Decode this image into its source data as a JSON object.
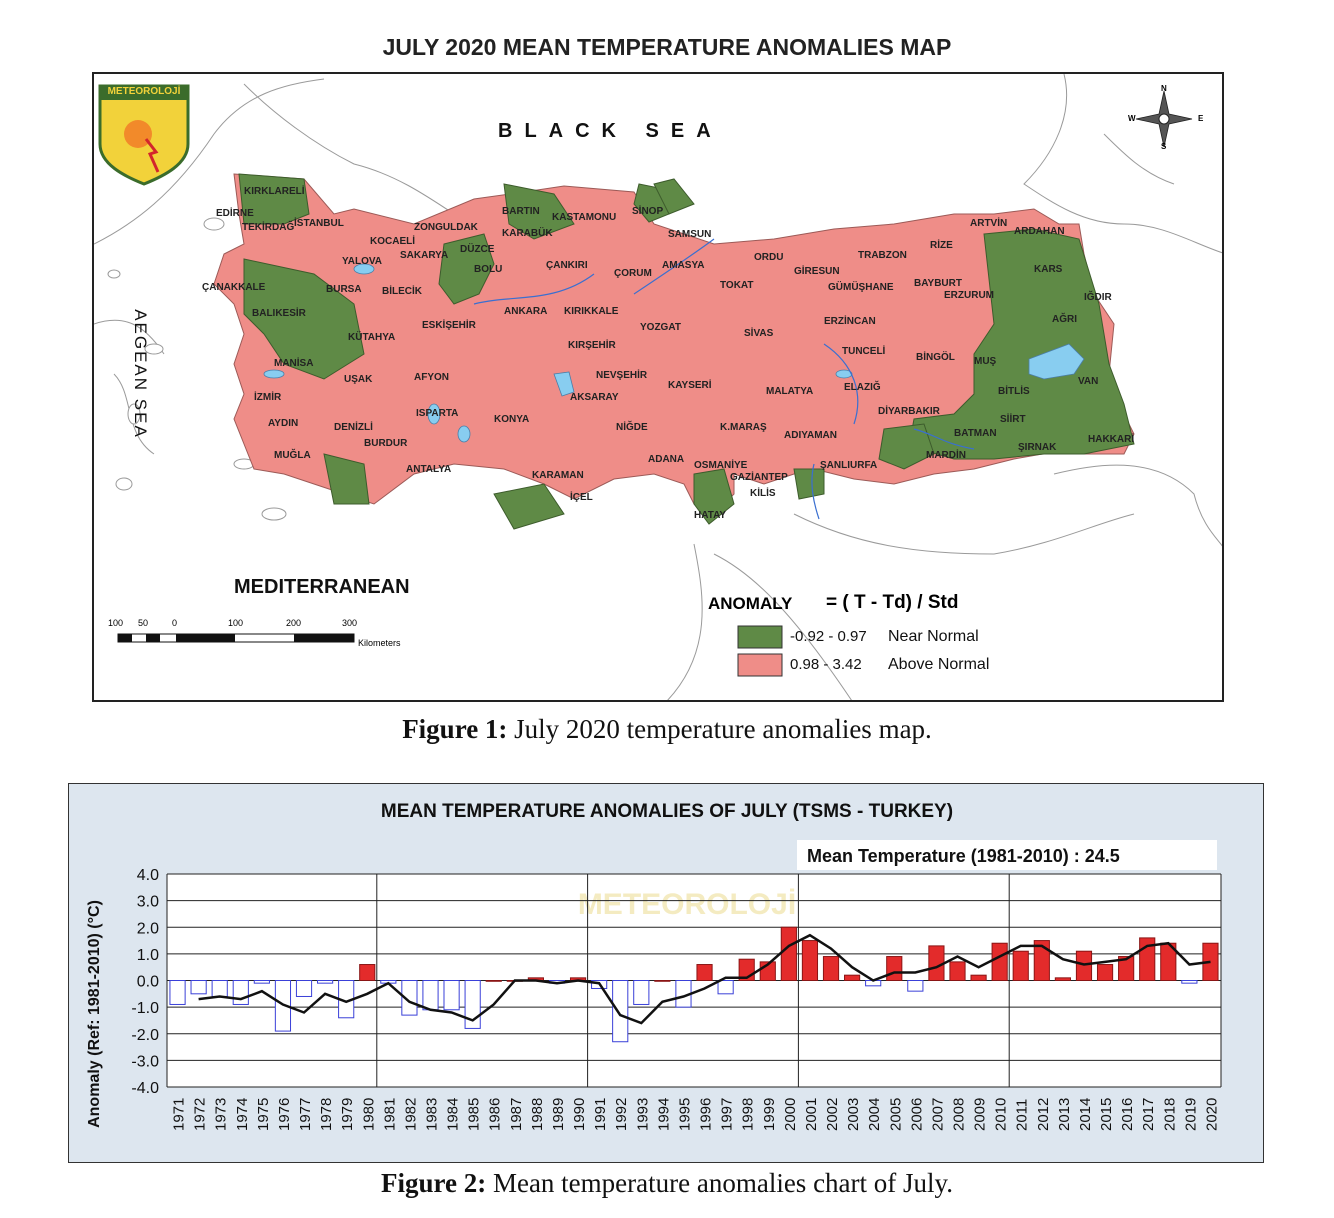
{
  "figure1": {
    "map_title": "JULY 2020 MEAN TEMPERATURE ANOMALIES MAP",
    "logo_text": "METEOROLOJİ",
    "seas": {
      "black_sea": "BLACK SEA",
      "aegean_sea": "AEGEAN SEA",
      "mediterranean": "MEDITERRANEAN"
    },
    "compass": {
      "n": "N",
      "e": "E",
      "s": "S",
      "w": "W"
    },
    "scale": {
      "ticks": [
        "100",
        "50",
        "0",
        "100",
        "200",
        "300"
      ],
      "unit": "Kilometers"
    },
    "legend": {
      "title": "ANOMALY",
      "formula": "= ( T - Td) / Std",
      "items": [
        {
          "range": "-0.92 - 0.97",
          "label": "Near Normal",
          "color": "#5f8a46"
        },
        {
          "range": "0.98 - 3.42",
          "label": "Above Normal",
          "color": "#ef8d88"
        }
      ]
    },
    "cities": [
      "KIRKLARELİ",
      "EDİRNE",
      "TEKİRDAĞ",
      "İSTANBUL",
      "ZONGULDAK",
      "BARTIN",
      "KASTAMONU",
      "SİNOP",
      "KOCAELİ",
      "DÜZCE",
      "KARABÜK",
      "SAMSUN",
      "ARTVİN",
      "ARDAHAN",
      "YALOVA",
      "SAKARYA",
      "BOLU",
      "ÇANKIRI",
      "AMASYA",
      "ORDU",
      "TRABZON",
      "RİZE",
      "ÇANAKKALE",
      "BURSA",
      "BİLECİK",
      "ÇORUM",
      "GİRESUN",
      "KARS",
      "TOKAT",
      "GÜMÜŞHANE",
      "BAYBURT",
      "IĞDIR",
      "ERZURUM",
      "BALIKESİR",
      "ESKİŞEHİR",
      "ANKARA",
      "KIRIKKALE",
      "YOZGAT",
      "ERZİNCAN",
      "AĞRI",
      "KÜTAHYA",
      "SİVAS",
      "KIRŞEHİR",
      "TUNCELİ",
      "BİNGÖL",
      "MUŞ",
      "MANİSA",
      "UŞAK",
      "AFYON",
      "NEVŞEHİR",
      "KAYSERİ",
      "VAN",
      "ELAZIĞ",
      "MALATYA",
      "BİTLİS",
      "İZMİR",
      "AKSARAY",
      "DİYARBAKIR",
      "SİİRT",
      "AYDIN",
      "DENİZLİ",
      "ISPARTA",
      "KONYA",
      "NİĞDE",
      "K.MARAŞ",
      "ADIYAMAN",
      "BATMAN",
      "HAKKARİ",
      "BURDUR",
      "ŞIRNAK",
      "MUĞLA",
      "ADANA",
      "OSMANİYE",
      "MARDİN",
      "ANTALYA",
      "KARAMAN",
      "GAZİANTEP",
      "ŞANLIURFA",
      "İÇEL",
      "KİLİS",
      "HATAY"
    ],
    "caption_bold": "Figure 1:",
    "caption_text": " July 2020 temperature anomalies map."
  },
  "figure2": {
    "caption_bold": "Figure 2:",
    "caption_text": " Mean temperature anomalies chart of July."
  },
  "chart_data": {
    "type": "bar",
    "title": "MEAN TEMPERATURE ANOMALIES OF JULY (TSMS - TURKEY)",
    "annotation": "Mean Temperature (1981-2010) : 24.5",
    "watermark": "METEOROLOJİ",
    "ylabel": "Anomaly (Ref: 1981-2010) (°C)",
    "xlabel": "",
    "ylim": [
      -4.0,
      4.0
    ],
    "yticks": [
      "4.0",
      "3.0",
      "2.0",
      "1.0",
      "0.0",
      "-1.0",
      "-2.0",
      "-3.0",
      "-4.0"
    ],
    "grid": true,
    "categories": [
      "1971",
      "1972",
      "1973",
      "1974",
      "1975",
      "1976",
      "1977",
      "1978",
      "1979",
      "1980",
      "1981",
      "1982",
      "1983",
      "1984",
      "1985",
      "1986",
      "1987",
      "1988",
      "1989",
      "1990",
      "1991",
      "1992",
      "1993",
      "1994",
      "1995",
      "1996",
      "1997",
      "1998",
      "1999",
      "2000",
      "2001",
      "2002",
      "2003",
      "2004",
      "2005",
      "2006",
      "2007",
      "2008",
      "2009",
      "2010",
      "2011",
      "2012",
      "2013",
      "2014",
      "2015",
      "2016",
      "2017",
      "2018",
      "2019",
      "2020"
    ],
    "series": [
      {
        "values": [
          -0.9,
          -0.5,
          -0.6,
          -0.9,
          -0.1,
          -1.9,
          -0.6,
          -0.1,
          -1.4,
          0.6,
          -0.1,
          -1.3,
          -1.1,
          -1.1,
          -1.8,
          0.0,
          0.0,
          0.1,
          -0.1,
          0.1,
          -0.3,
          -2.3,
          -0.9,
          0.0,
          -1.0,
          0.6,
          -0.5,
          0.8,
          0.7,
          2.0,
          1.5,
          0.9,
          0.2,
          -0.2,
          0.9,
          -0.4,
          1.3,
          0.7,
          0.2,
          1.4,
          1.1,
          1.5,
          0.1,
          1.1,
          0.6,
          0.9,
          1.6,
          1.4,
          -0.1,
          1.4
        ]
      },
      {
        "values": [
          null,
          -0.7,
          -0.6,
          -0.7,
          -0.4,
          -0.9,
          -1.2,
          -0.5,
          -0.8,
          -0.5,
          -0.1,
          -0.8,
          -1.1,
          -1.2,
          -1.5,
          -0.9,
          0.0,
          0.0,
          -0.1,
          0.0,
          -0.1,
          -1.3,
          -1.6,
          -0.8,
          -0.6,
          -0.3,
          0.1,
          0.1,
          0.6,
          1.3,
          1.7,
          1.2,
          0.5,
          0.0,
          0.3,
          0.3,
          0.5,
          0.9,
          0.5,
          0.9,
          1.3,
          1.3,
          0.8,
          0.6,
          0.7,
          0.8,
          1.3,
          1.4,
          0.6,
          0.7
        ]
      }
    ],
    "colors": {
      "positive": "#e32b2b",
      "negative_fill": "#ffffff",
      "negative_stroke": "#3a40d8",
      "line": "#111111",
      "plot_bg": "#ffffff",
      "frame_bg": "#dde6ef"
    }
  }
}
